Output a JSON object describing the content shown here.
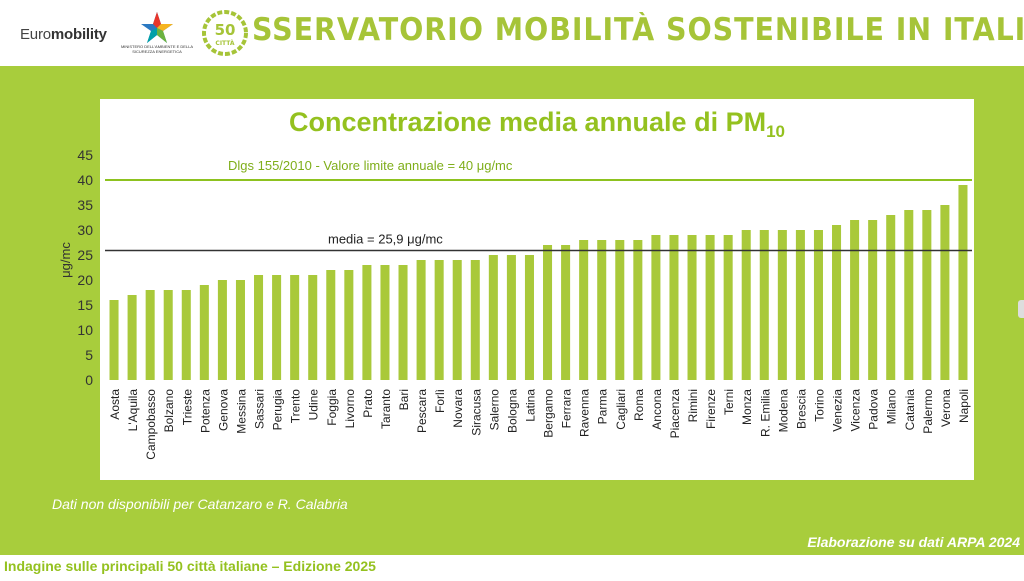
{
  "header": {
    "logo_text_light": "Euro",
    "logo_text_bold": "mobility",
    "ministry_text": "MINISTERO DELL'AMBIENTE E DELLA SICUREZZA ENERGETICA",
    "badge_number": "50",
    "badge_label": "CITTÀ",
    "title": "SSERVATORIO MOBILITÀ SOSTENIBILE IN ITALIA"
  },
  "colors": {
    "accent_green": "#a8cd3c",
    "bar_green": "#a9c93a",
    "limit_line": "#8dc21f",
    "mean_line": "#333333"
  },
  "chart_data": {
    "type": "bar",
    "title": "Concentrazione media annuale di PM",
    "title_subscript": "10",
    "ylabel": "μg/mc",
    "ylim": [
      0,
      45
    ],
    "yticks": [
      0,
      5,
      10,
      15,
      20,
      25,
      30,
      35,
      40,
      45
    ],
    "categories": [
      "Aosta",
      "L'Aquila",
      "Campobasso",
      "Bolzano",
      "Trieste",
      "Potenza",
      "Genova",
      "Messina",
      "Sassari",
      "Perugia",
      "Trento",
      "Udine",
      "Foggia",
      "Livorno",
      "Prato",
      "Taranto",
      "Bari",
      "Pescara",
      "Forlì",
      "Novara",
      "Siracusa",
      "Salerno",
      "Bologna",
      "Latina",
      "Bergamo",
      "Ferrara",
      "Ravenna",
      "Parma",
      "Cagliari",
      "Roma",
      "Ancona",
      "Piacenza",
      "Rimini",
      "Firenze",
      "Terni",
      "Monza",
      "R. Emilia",
      "Modena",
      "Brescia",
      "Torino",
      "Venezia",
      "Vicenza",
      "Padova",
      "Milano",
      "Catania",
      "Palermo",
      "Verona",
      "Napoli"
    ],
    "values": [
      16,
      17,
      18,
      18,
      18,
      19,
      20,
      20,
      21,
      21,
      21,
      21,
      22,
      22,
      23,
      23,
      23,
      24,
      24,
      24,
      24,
      25,
      25,
      25,
      27,
      27,
      28,
      28,
      28,
      28,
      29,
      29,
      29,
      29,
      29,
      30,
      30,
      30,
      30,
      30,
      31,
      32,
      32,
      33,
      34,
      34,
      35,
      39
    ],
    "reference_lines": [
      {
        "value": 40,
        "label": "Dlgs 155/2010 - Valore limite annuale = 40 μg/mc"
      },
      {
        "value": 25.9,
        "label": "media = 25,9 μg/mc"
      }
    ],
    "grid": false,
    "legend": "none"
  },
  "footnote": "Dati non disponibili per Catanzaro e R. Calabria",
  "source": "Elaborazione su dati ARPA 2024",
  "edition": "Indagine sulle principali 50 città italiane – Edizione 2025"
}
